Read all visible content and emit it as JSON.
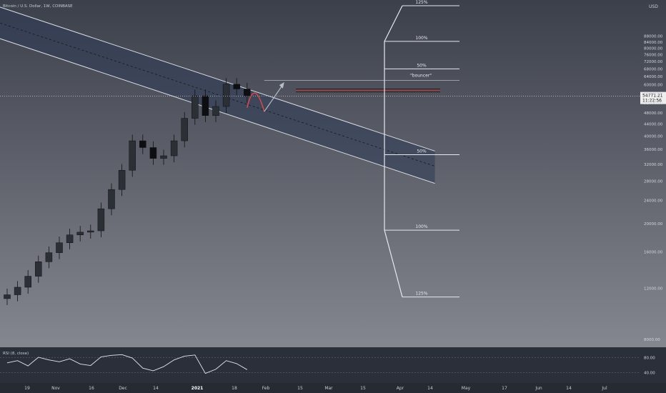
{
  "header": {
    "symbol_line": "Bitcoin / U.S. Dollar, 1W, COINBASE",
    "currency": "USD"
  },
  "price_tag": {
    "value": "54771.21",
    "countdown": "11:22:56"
  },
  "annotations": {
    "bouncer_label": "\"bouncer\"",
    "fib_upper": [
      "125%",
      "100%",
      "50%"
    ],
    "fib_lower": [
      "50%",
      "100%",
      "125%"
    ]
  },
  "indicator": {
    "label": "RSI (8, close)",
    "ticks": [
      "80.00",
      "40.00"
    ]
  },
  "colors": {
    "background_top": "#3c404b",
    "background_bottom": "#8e9098",
    "channel_fill": "#2d3a55",
    "channel_line": "#d8dbe2",
    "resistance_line": "#1a1a1a",
    "resistance_band": "#b33a3a",
    "bounce_red": "#d04a4a",
    "arrow_gray": "#b8bec8",
    "price_tag_bg": "#eeeeee"
  },
  "chart_data": {
    "type": "line",
    "title": "Bitcoin / U.S. Dollar, 1W, COINBASE",
    "scale": "log",
    "ylabel": "USD",
    "ylim": [
      7700,
      112000
    ],
    "y_ticks": [
      "88000.00",
      "84000.00",
      "80000.00",
      "76000.00",
      "72000.00",
      "68000.00",
      "64000.00",
      "60000.00",
      "56000.00",
      "52000.00",
      "48000.00",
      "44000.00",
      "40000.00",
      "36000.00",
      "32000.00",
      "28000.00",
      "24000.00",
      "20000.00",
      "16000.00",
      "12000.00",
      "8000.00"
    ],
    "x_ticks": [
      "19",
      "Nov",
      "16",
      "Dec",
      "14",
      "2021",
      "18",
      "Feb",
      "15",
      "Mar",
      "15",
      "Apr",
      "14",
      "May",
      "17",
      "Jun",
      "14",
      "Jul"
    ],
    "x": [
      "2020-10-12",
      "2020-10-19",
      "2020-10-26",
      "2020-11-02",
      "2020-11-09",
      "2020-11-16",
      "2020-11-23",
      "2020-11-30",
      "2020-12-07",
      "2020-12-14",
      "2020-12-21",
      "2020-12-28",
      "2021-01-04",
      "2021-01-11",
      "2021-01-18",
      "2021-01-25",
      "2021-02-01",
      "2021-02-08",
      "2021-02-15",
      "2021-02-22",
      "2021-03-01",
      "2021-03-08",
      "2021-03-15",
      "2021-03-22"
    ],
    "series": [
      {
        "values": [
          11400,
          12100,
          13200,
          14800,
          15900,
          17200,
          18300,
          18700,
          18900,
          22500,
          26200,
          30500,
          38500,
          36500,
          33500,
          34200,
          38500,
          46000,
          55000,
          47000,
          50500,
          60200,
          58000,
          54771
        ]
      }
    ],
    "channel": {
      "upper": {
        "start": [
          "2020-09-21",
          118000
        ],
        "end": [
          "2021-07-26",
          35500
        ]
      },
      "middle": {
        "start": [
          "2020-09-21",
          104000
        ],
        "end": [
          "2021-07-26",
          31500
        ]
      },
      "lower": {
        "start": [
          "2020-09-21",
          92000
        ],
        "end": [
          "2021-07-26",
          27500
        ]
      }
    },
    "resistance": 57300,
    "fib_levels": [
      {
        "label": "125%",
        "value": 112000
      },
      {
        "label": "100%",
        "value": 84500
      },
      {
        "label": "50%",
        "value": 68000
      },
      {
        "label": "50%",
        "value": 34500
      },
      {
        "label": "100%",
        "value": 19000
      },
      {
        "label": "125%",
        "value": 11200
      }
    ],
    "projection_label": "\"bouncer\"",
    "rsi": {
      "name": "RSI (8, close)",
      "ylim": [
        20,
        100
      ],
      "values": [
        66,
        72,
        58,
        81,
        74,
        69,
        77,
        63,
        59,
        82,
        86,
        88,
        79,
        52,
        45,
        56,
        74,
        84,
        87,
        38,
        49,
        72,
        64,
        48
      ]
    }
  }
}
